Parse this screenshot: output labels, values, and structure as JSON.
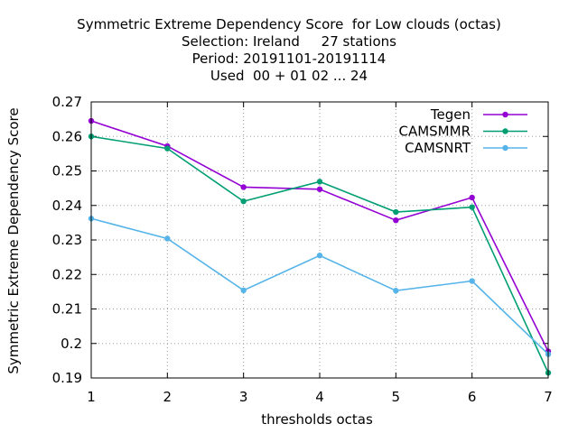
{
  "chart_data": {
    "type": "line",
    "title_lines": [
      "Symmetric Extreme Dependency Score  for Low clouds (octas)",
      "Selection: Ireland     27 stations",
      "Period: 20191101-20191114",
      "Used  00 + 01 02 ... 24"
    ],
    "xlabel": "thresholds octas",
    "ylabel": "Symmetric Extreme Dependency Score",
    "x": [
      1,
      2,
      3,
      4,
      5,
      6,
      7
    ],
    "xticks": [
      "1",
      "2",
      "3",
      "4",
      "5",
      "6",
      "7"
    ],
    "xlim": [
      1,
      7
    ],
    "ylim": [
      0.19,
      0.27
    ],
    "yticks": [
      "0.19",
      "0.2",
      "0.21",
      "0.22",
      "0.23",
      "0.24",
      "0.25",
      "0.26",
      "0.27"
    ],
    "grid": true,
    "legend_position": "top-right",
    "series": [
      {
        "name": "Tegen",
        "color": "#9400d3",
        "values": [
          0.2645,
          0.2572,
          0.2453,
          0.2447,
          0.2357,
          0.2423,
          0.1977
        ]
      },
      {
        "name": "CAMSMMR",
        "color": "#009e73",
        "values": [
          0.26,
          0.2565,
          0.2412,
          0.2469,
          0.2381,
          0.2395,
          0.1915
        ]
      },
      {
        "name": "CAMSNRT",
        "color": "#56b4e9",
        "values": [
          0.2362,
          0.2304,
          0.2154,
          0.2255,
          0.2153,
          0.2181,
          0.1969
        ]
      }
    ]
  }
}
